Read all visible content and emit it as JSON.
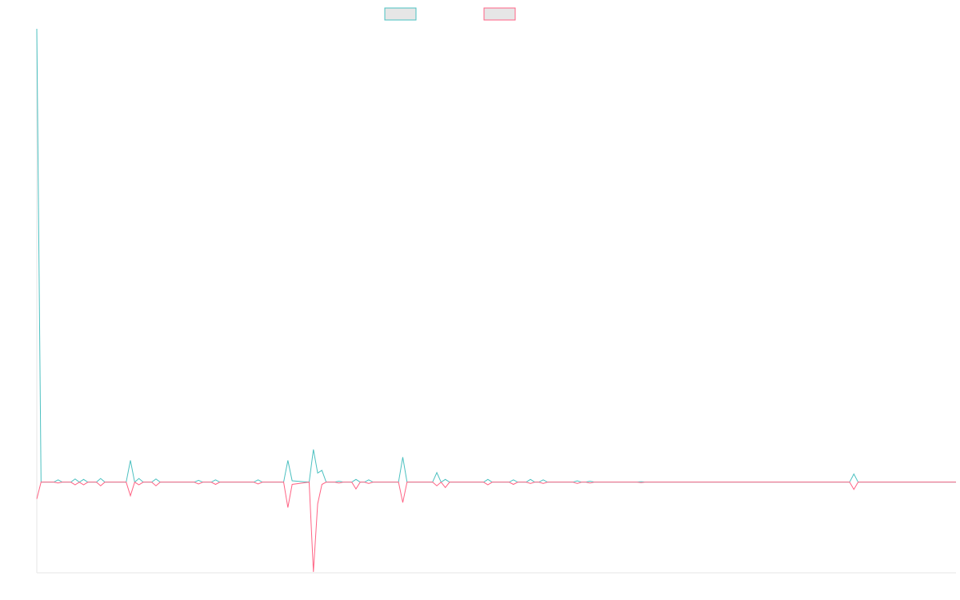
{
  "chart_data": {
    "type": "line",
    "xlim": [
      0,
      216
    ],
    "ylim": [
      -20,
      100
    ],
    "x": [
      0,
      1,
      4,
      5,
      6,
      8,
      9,
      10,
      11,
      12,
      14,
      15,
      16,
      21,
      22,
      23,
      24,
      25,
      27,
      28,
      29,
      37,
      38,
      39,
      41,
      42,
      43,
      51,
      52,
      53,
      58,
      59,
      60,
      64,
      65,
      66,
      67,
      68,
      70,
      71,
      72,
      74,
      75,
      76,
      77,
      78,
      79,
      85,
      86,
      87,
      93,
      94,
      95,
      96,
      97,
      105,
      106,
      107,
      111,
      112,
      113,
      115,
      116,
      117,
      118,
      119,
      120,
      126,
      127,
      128,
      129,
      130,
      131,
      141,
      142,
      143,
      191,
      192,
      193,
      216
    ],
    "series": [
      {
        "color": "#4bc0c0",
        "values": [
          100,
          0,
          0,
          0.5,
          0,
          0,
          0.7,
          0,
          0.6,
          0,
          0,
          0.8,
          0,
          0,
          4.8,
          0,
          0.8,
          0,
          0,
          0.7,
          0,
          0,
          0.4,
          0,
          0,
          0.5,
          0,
          0,
          0.5,
          0,
          0,
          4.8,
          0.3,
          0,
          7.2,
          2.0,
          2.6,
          0,
          0,
          0.2,
          0,
          0,
          0.6,
          0,
          0,
          0.5,
          0,
          0,
          5.5,
          0,
          0,
          2.1,
          0,
          0.6,
          0,
          0,
          0.6,
          0,
          0,
          0.5,
          0,
          0,
          0.6,
          0,
          0,
          0.5,
          0,
          0,
          0.3,
          0,
          0,
          0.2,
          0,
          0,
          0.1,
          0,
          0,
          1.8,
          0,
          0
        ]
      },
      {
        "color": "#ff6384",
        "values": [
          -3.7,
          0,
          0,
          -0.2,
          0,
          0,
          -0.6,
          0,
          -0.6,
          0,
          0,
          -0.8,
          0,
          0,
          -3,
          0,
          -0.6,
          0,
          0,
          -0.8,
          0,
          0,
          -0.4,
          0,
          0,
          -0.5,
          0,
          0,
          -0.4,
          0,
          0,
          -5.6,
          -0.5,
          0,
          -19.8,
          -4.8,
          -0.5,
          0,
          0,
          -0.2,
          0,
          0,
          -1.5,
          0,
          0,
          -0.3,
          0,
          0,
          -4.5,
          0,
          0,
          -0.8,
          0,
          -1.2,
          0,
          0,
          -0.6,
          0,
          0,
          -0.5,
          0,
          0,
          -0.3,
          0,
          0,
          -0.3,
          0,
          0,
          -0.3,
          0,
          0,
          -0.2,
          0,
          0,
          -0.1,
          0,
          0,
          -1.6,
          0,
          0
        ]
      }
    ]
  }
}
